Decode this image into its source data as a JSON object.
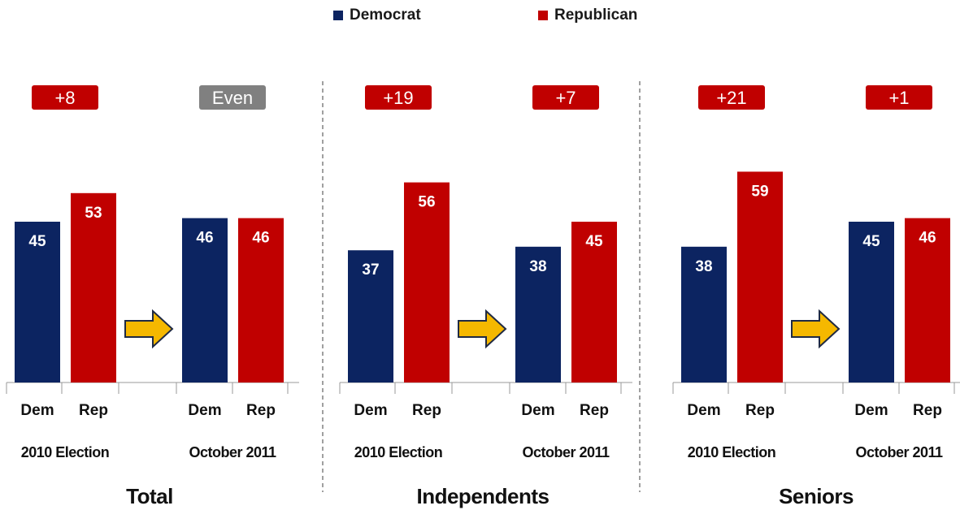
{
  "legend": {
    "democrat_label": "Democrat",
    "republican_label": "Republican",
    "democrat_color": "#0c2461",
    "republican_color": "#c00000"
  },
  "colors": {
    "democrat": "#0c2461",
    "republican": "#c00000",
    "margin_rep_badge": "#c00000",
    "margin_even_badge": "#808080",
    "arrow_fill": "#f5b800",
    "arrow_stroke": "#1f2a44",
    "divider": "#808080"
  },
  "icons": {
    "transition_arrow": "arrow-right-icon"
  },
  "chart_data": {
    "type": "bar",
    "series_names": [
      "Democrat",
      "Republican"
    ],
    "ylim": [
      0,
      100
    ],
    "groups": [
      {
        "name": "Total",
        "periods": [
          {
            "label": "2010 Election",
            "dem_label": "Dem",
            "rep_label": "Rep",
            "dem": 45,
            "rep": 53,
            "margin": "+8",
            "margin_type": "rep"
          },
          {
            "label": "October 2011",
            "dem_label": "Dem",
            "rep_label": "Rep",
            "dem": 46,
            "rep": 46,
            "margin": "Even",
            "margin_type": "even"
          }
        ]
      },
      {
        "name": "Independents",
        "periods": [
          {
            "label": "2010 Election",
            "dem_label": "Dem",
            "rep_label": "Rep",
            "dem": 37,
            "rep": 56,
            "margin": "+19",
            "margin_type": "rep"
          },
          {
            "label": "October 2011",
            "dem_label": "Dem",
            "rep_label": "Rep",
            "dem": 38,
            "rep": 45,
            "margin": "+7",
            "margin_type": "rep"
          }
        ]
      },
      {
        "name": "Seniors",
        "periods": [
          {
            "label": "2010 Election",
            "dem_label": "Dem",
            "rep_label": "Rep",
            "dem": 38,
            "rep": 59,
            "margin": "+21",
            "margin_type": "rep"
          },
          {
            "label": "October 2011",
            "dem_label": "Dem",
            "rep_label": "Rep",
            "dem": 45,
            "rep": 46,
            "margin": "+1",
            "margin_type": "rep"
          }
        ]
      }
    ]
  }
}
